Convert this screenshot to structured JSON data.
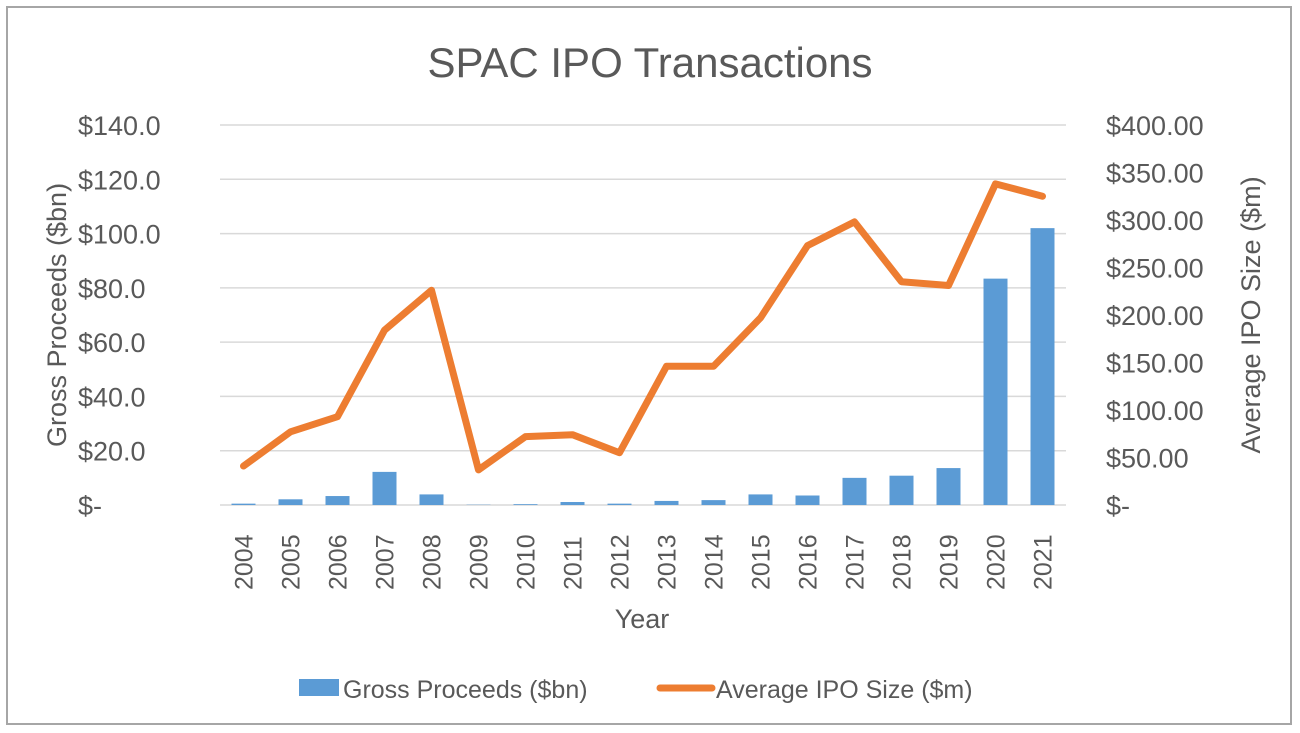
{
  "chart_data": {
    "type": "bar+line",
    "title": "SPAC IPO Transactions",
    "xlabel": "Year",
    "ylabel": "Gross Proceeds ($bn)",
    "y2label": "Average IPO Size ($m)",
    "categories": [
      "2004",
      "2005",
      "2006",
      "2007",
      "2008",
      "2009",
      "2010",
      "2011",
      "2012",
      "2013",
      "2014",
      "2015",
      "2016",
      "2017",
      "2018",
      "2019",
      "2020",
      "2021"
    ],
    "series": [
      {
        "name": "Gross Proceeds ($bn)",
        "type": "bar",
        "axis": "left",
        "color": "#5b9bd5",
        "values": [
          0.5,
          2.1,
          3.3,
          12.2,
          3.9,
          0.1,
          0.3,
          1.1,
          0.5,
          1.5,
          1.8,
          3.9,
          3.5,
          10.0,
          10.8,
          13.6,
          83.4,
          102.0
        ]
      },
      {
        "name": "Average IPO Size ($m)",
        "type": "line",
        "axis": "right",
        "color": "#ed7d31",
        "values": [
          41,
          77,
          93,
          184,
          226,
          37,
          72,
          74,
          55,
          146,
          146,
          197,
          273,
          298,
          235,
          231,
          338,
          325
        ]
      }
    ],
    "ylim": [
      0,
      140
    ],
    "y2lim": [
      0,
      400
    ],
    "yticks": [
      "$-",
      "$20.0",
      "$40.0",
      "$60.0",
      "$80.0",
      "$100.0",
      "$120.0",
      "$140.0"
    ],
    "y2ticks": [
      "$-",
      "$50.00",
      "$100.00",
      "$150.00",
      "$200.00",
      "$250.00",
      "$300.00",
      "$350.00",
      "$400.00"
    ],
    "grid": true,
    "legend": "bottom"
  }
}
